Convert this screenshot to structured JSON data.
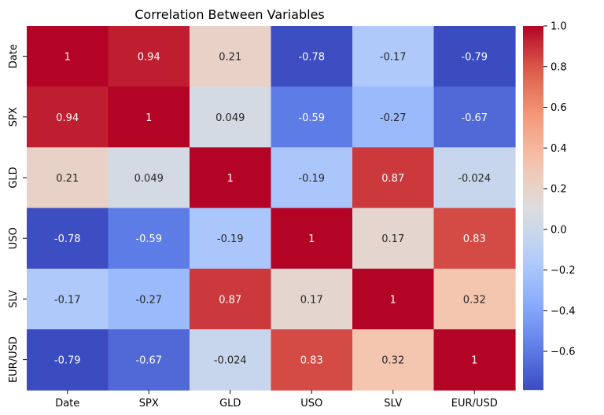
{
  "chart_data": {
    "type": "heatmap",
    "title": "Correlation Between Variables",
    "xlabel": "",
    "ylabel": "",
    "row_labels": [
      "Date",
      "SPX",
      "GLD",
      "USO",
      "SLV",
      "EUR/USD"
    ],
    "col_labels": [
      "Date",
      "SPX",
      "GLD",
      "USO",
      "SLV",
      "EUR/USD"
    ],
    "values": [
      [
        1,
        0.94,
        0.21,
        -0.78,
        -0.17,
        -0.79
      ],
      [
        0.94,
        1,
        0.049,
        -0.59,
        -0.27,
        -0.67
      ],
      [
        0.21,
        0.049,
        1,
        -0.19,
        0.87,
        -0.024
      ],
      [
        -0.78,
        -0.59,
        -0.19,
        1,
        0.17,
        0.83
      ],
      [
        -0.17,
        -0.27,
        0.87,
        0.17,
        1,
        0.32
      ],
      [
        -0.79,
        -0.67,
        -0.024,
        0.83,
        0.32,
        1
      ]
    ],
    "cell_labels": [
      [
        "1",
        "0.94",
        "0.21",
        "-0.78",
        "-0.17",
        "-0.79"
      ],
      [
        "0.94",
        "1",
        "0.049",
        "-0.59",
        "-0.27",
        "-0.67"
      ],
      [
        "0.21",
        "0.049",
        "1",
        "-0.19",
        "0.87",
        "-0.024"
      ],
      [
        "-0.78",
        "-0.59",
        "-0.19",
        "1",
        "0.17",
        "0.83"
      ],
      [
        "-0.17",
        "-0.27",
        "0.87",
        "0.17",
        "1",
        "0.32"
      ],
      [
        "-0.79",
        "-0.67",
        "-0.024",
        "0.83",
        "0.32",
        "1"
      ]
    ],
    "colormap": "coolwarm",
    "colorbar": {
      "range": [
        -0.79,
        1
      ],
      "ticks": [
        -0.6,
        -0.4,
        -0.2,
        0.0,
        0.2,
        0.4,
        0.6,
        0.8,
        1.0
      ],
      "tick_labels": [
        "−0.6",
        "−0.4",
        "−0.2",
        "0.0",
        "0.2",
        "0.4",
        "0.6",
        "0.8",
        "1.0"
      ]
    },
    "grid": false
  }
}
